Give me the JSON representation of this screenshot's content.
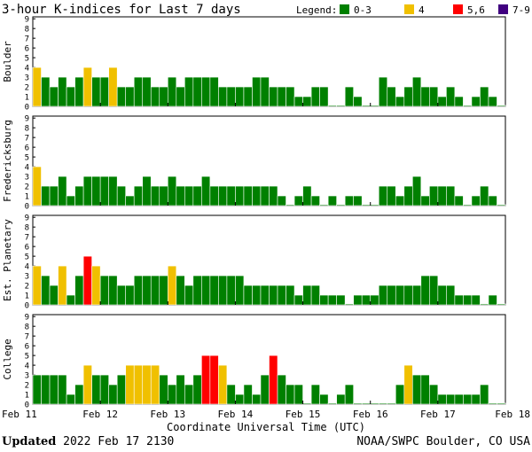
{
  "chart_data": {
    "type": "bar",
    "title": "3-hour K-indices for Last 7 days",
    "legend": {
      "label": "Legend:",
      "entries": [
        {
          "label": "0-3",
          "color": "#008000"
        },
        {
          "label": "4",
          "color": "#f0c000"
        },
        {
          "label": "5,6",
          "color": "#ff0000"
        },
        {
          "label": "7-9",
          "color": "#400080"
        }
      ]
    },
    "xlabel": "Coordinate Universal Time (UTC)",
    "x_ticks": [
      "Feb 11",
      "Feb 12",
      "Feb 13",
      "Feb 14",
      "Feb 15",
      "Feb 16",
      "Feb 17",
      "Feb 18"
    ],
    "ylim": [
      0,
      9
    ],
    "y_ticks": [
      "0",
      "1",
      "2",
      "3",
      "4",
      "5",
      "6",
      "7",
      "8",
      "9"
    ],
    "panels": [
      {
        "name": "Boulder",
        "values": [
          4,
          3,
          2,
          3,
          2,
          3,
          4,
          3,
          3,
          4,
          2,
          2,
          3,
          3,
          2,
          2,
          3,
          2,
          3,
          3,
          3,
          3,
          2,
          2,
          2,
          2,
          3,
          3,
          2,
          2,
          2,
          1,
          1,
          2,
          2,
          0,
          0,
          2,
          1,
          0,
          0,
          3,
          2,
          1,
          2,
          3,
          2,
          2,
          1,
          2,
          1,
          0,
          1,
          2,
          1,
          0
        ]
      },
      {
        "name": "Fredericksburg",
        "values": [
          4,
          2,
          2,
          3,
          1,
          2,
          3,
          3,
          3,
          3,
          2,
          1,
          2,
          3,
          2,
          2,
          3,
          2,
          2,
          2,
          3,
          2,
          2,
          2,
          2,
          2,
          2,
          2,
          2,
          1,
          0,
          1,
          2,
          1,
          0,
          1,
          0,
          1,
          1,
          0,
          0,
          2,
          2,
          1,
          2,
          3,
          1,
          2,
          2,
          2,
          1,
          0,
          1,
          2,
          1,
          0
        ]
      },
      {
        "name": "Est. Planetary",
        "values": [
          4,
          3,
          2,
          4,
          1,
          3,
          5,
          4,
          3,
          3,
          2,
          2,
          3,
          3,
          3,
          3,
          4,
          3,
          2,
          3,
          3,
          3,
          3,
          3,
          3,
          2,
          2,
          2,
          2,
          2,
          2,
          1,
          2,
          2,
          1,
          1,
          1,
          0,
          1,
          1,
          1,
          2,
          2,
          2,
          2,
          2,
          3,
          3,
          2,
          2,
          1,
          1,
          1,
          0,
          1,
          0
        ]
      },
      {
        "name": "College",
        "values": [
          3,
          3,
          3,
          3,
          1,
          2,
          4,
          3,
          3,
          2,
          3,
          4,
          4,
          4,
          4,
          3,
          2,
          3,
          2,
          3,
          5,
          5,
          4,
          2,
          1,
          2,
          1,
          3,
          5,
          3,
          2,
          2,
          0,
          2,
          1,
          0,
          1,
          2,
          0,
          0,
          0,
          0,
          0,
          2,
          4,
          3,
          3,
          2,
          1,
          1,
          1,
          1,
          1,
          2,
          0,
          0
        ]
      }
    ]
  },
  "footer": {
    "updated_label": "Updated",
    "updated_value": "2022 Feb 17 2130",
    "credit": "NOAA/SWPC Boulder, CO USA"
  }
}
